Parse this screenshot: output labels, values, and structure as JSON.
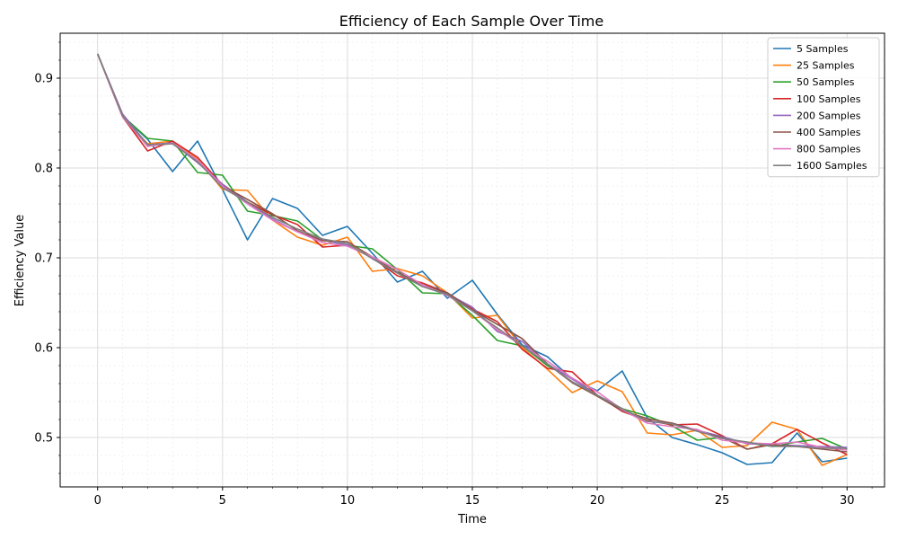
{
  "chart_data": {
    "type": "line",
    "title": "Efficiency of Each Sample Over Time",
    "xlabel": "Time",
    "ylabel": "Efficiency Value",
    "xlim": [
      -1.5,
      31.5
    ],
    "ylim": [
      0.445,
      0.95
    ],
    "x_ticks": [
      0,
      5,
      10,
      15,
      20,
      25,
      30
    ],
    "y_ticks": [
      0.5,
      0.6,
      0.7,
      0.8,
      0.9
    ],
    "y_tick_labels": [
      "0.5",
      "0.6",
      "0.7",
      "0.8",
      "0.9"
    ],
    "grid": true,
    "legend_position": "top-right",
    "x": [
      0,
      1,
      2,
      3,
      4,
      5,
      6,
      7,
      8,
      9,
      10,
      11,
      12,
      13,
      14,
      15,
      16,
      17,
      18,
      19,
      20,
      21,
      22,
      23,
      24,
      25,
      26,
      27,
      28,
      29,
      30
    ],
    "series": [
      {
        "name": "5 Samples",
        "color": "#1f77b4",
        "values": [
          0.927,
          0.858,
          0.832,
          0.796,
          0.83,
          0.776,
          0.72,
          0.766,
          0.755,
          0.725,
          0.735,
          0.705,
          0.673,
          0.685,
          0.655,
          0.675,
          0.637,
          0.603,
          0.59,
          0.565,
          0.552,
          0.574,
          0.522,
          0.5,
          0.492,
          0.483,
          0.47,
          0.472,
          0.505,
          0.473,
          0.477
        ]
      },
      {
        "name": "25 Samples",
        "color": "#ff7f0e",
        "values": [
          0.927,
          0.857,
          0.827,
          0.83,
          0.81,
          0.776,
          0.775,
          0.742,
          0.723,
          0.714,
          0.723,
          0.685,
          0.688,
          0.68,
          0.661,
          0.633,
          0.636,
          0.6,
          0.576,
          0.55,
          0.563,
          0.551,
          0.505,
          0.503,
          0.508,
          0.489,
          0.491,
          0.517,
          0.509,
          0.469,
          0.481
        ]
      },
      {
        "name": "50 Samples",
        "color": "#2ca02c",
        "values": [
          0.927,
          0.858,
          0.833,
          0.83,
          0.795,
          0.792,
          0.752,
          0.747,
          0.741,
          0.72,
          0.714,
          0.71,
          0.687,
          0.661,
          0.66,
          0.636,
          0.608,
          0.602,
          0.58,
          0.566,
          0.547,
          0.532,
          0.524,
          0.513,
          0.497,
          0.5,
          0.494,
          0.49,
          0.495,
          0.499,
          0.487
        ]
      },
      {
        "name": "100 Samples",
        "color": "#d62728",
        "values": [
          0.927,
          0.857,
          0.819,
          0.83,
          0.812,
          0.781,
          0.762,
          0.748,
          0.737,
          0.712,
          0.714,
          0.7,
          0.68,
          0.672,
          0.661,
          0.643,
          0.629,
          0.598,
          0.577,
          0.573,
          0.547,
          0.529,
          0.519,
          0.514,
          0.515,
          0.502,
          0.487,
          0.493,
          0.509,
          0.494,
          0.481
        ]
      },
      {
        "name": "200 Samples",
        "color": "#9467bd",
        "values": [
          0.927,
          0.86,
          0.826,
          0.828,
          0.806,
          0.782,
          0.762,
          0.743,
          0.729,
          0.72,
          0.714,
          0.7,
          0.684,
          0.67,
          0.66,
          0.645,
          0.618,
          0.607,
          0.582,
          0.565,
          0.547,
          0.531,
          0.518,
          0.516,
          0.508,
          0.501,
          0.493,
          0.492,
          0.491,
          0.49,
          0.489
        ]
      },
      {
        "name": "400 Samples",
        "color": "#8c564b",
        "values": [
          0.927,
          0.858,
          0.825,
          0.827,
          0.807,
          0.78,
          0.765,
          0.749,
          0.73,
          0.719,
          0.718,
          0.701,
          0.684,
          0.67,
          0.661,
          0.642,
          0.626,
          0.61,
          0.582,
          0.561,
          0.546,
          0.53,
          0.521,
          0.516,
          0.507,
          0.5,
          0.487,
          0.492,
          0.49,
          0.487,
          0.484
        ]
      },
      {
        "name": "800 Samples",
        "color": "#e377c2",
        "values": [
          0.927,
          0.857,
          0.824,
          0.828,
          0.809,
          0.78,
          0.76,
          0.742,
          0.729,
          0.717,
          0.713,
          0.701,
          0.687,
          0.67,
          0.658,
          0.641,
          0.62,
          0.602,
          0.585,
          0.566,
          0.551,
          0.531,
          0.516,
          0.512,
          0.509,
          0.497,
          0.494,
          0.493,
          0.495,
          0.489,
          0.486
        ]
      },
      {
        "name": "1600 Samples",
        "color": "#7f7f7f",
        "values": [
          0.927,
          0.858,
          0.826,
          0.827,
          0.807,
          0.778,
          0.762,
          0.745,
          0.732,
          0.721,
          0.716,
          0.699,
          0.683,
          0.668,
          0.659,
          0.641,
          0.622,
          0.602,
          0.582,
          0.562,
          0.547,
          0.532,
          0.518,
          0.515,
          0.507,
          0.499,
          0.495,
          0.49,
          0.49,
          0.488,
          0.488
        ]
      }
    ]
  }
}
